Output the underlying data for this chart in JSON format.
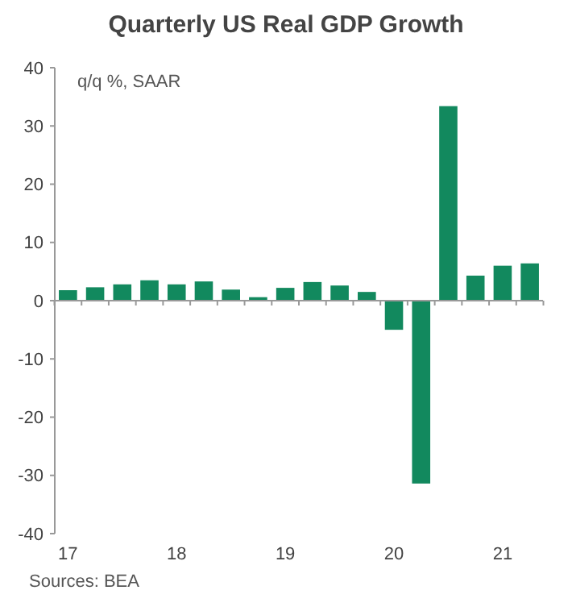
{
  "chart_data": {
    "type": "bar",
    "title": "Quarterly US Real GDP Growth",
    "ylabel": "q/q %, SAAR",
    "categories": [
      "17",
      null,
      null,
      null,
      "18",
      null,
      null,
      null,
      "19",
      null,
      null,
      null,
      "20",
      null,
      null,
      null,
      "21",
      null
    ],
    "values": [
      1.8,
      2.3,
      2.8,
      3.5,
      2.8,
      3.3,
      1.9,
      0.6,
      2.2,
      3.2,
      2.6,
      1.5,
      -5.0,
      -31.4,
      33.4,
      4.3,
      6.0,
      6.4
    ],
    "color": "#12895e",
    "ylim": [
      -40,
      40
    ],
    "yticks": [
      -40,
      -30,
      -20,
      -10,
      0,
      10,
      20,
      30,
      40
    ],
    "annotations": [
      "Sources: BEA"
    ]
  }
}
